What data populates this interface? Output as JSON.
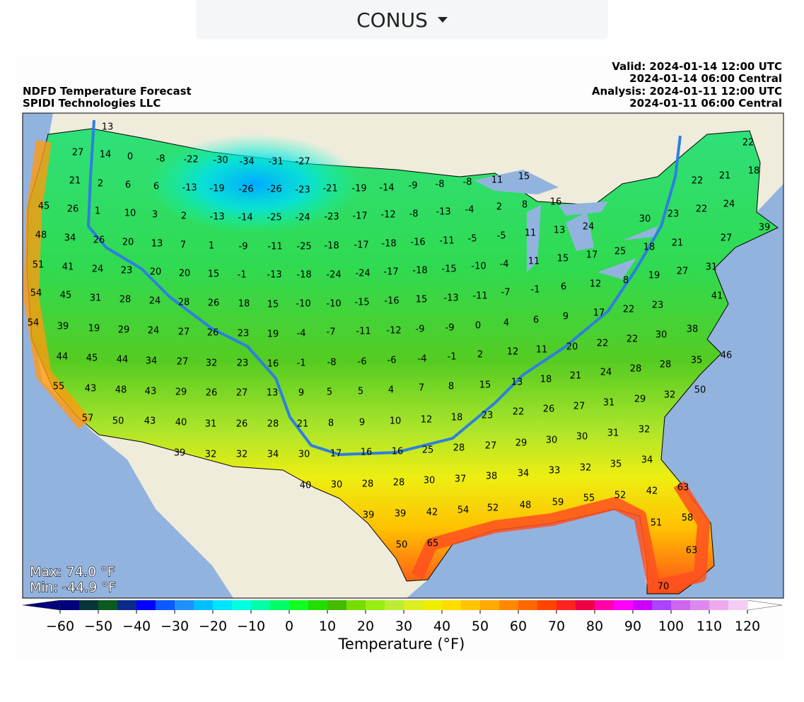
{
  "dropdown": {
    "label": "CONUS"
  },
  "map": {
    "title_lines": [
      "NDFD Temperature Forecast",
      "SPIDI Technologies LLC"
    ],
    "time_lines": [
      "Valid: 2024-01-14 12:00 UTC",
      "2024-01-14 06:00 Central",
      "Analysis: 2024-01-11 12:00 UTC",
      "2024-01-11 06:00 Central"
    ],
    "max_label": "Max: 74.0 °F",
    "min_label": "Min: -44.9 °F",
    "stations": [
      13,
      27,
      14,
      0,
      -8,
      -22,
      -30,
      -34,
      -31,
      -27,
      22,
      21,
      2,
      6,
      6,
      -13,
      -19,
      -26,
      -26,
      -23,
      -21,
      -19,
      -14,
      -9,
      -8,
      -8,
      11,
      15,
      22,
      21,
      18,
      45,
      26,
      1,
      10,
      3,
      2,
      -13,
      -14,
      -25,
      -24,
      -23,
      -17,
      -12,
      -8,
      -13,
      -4,
      2,
      8,
      16,
      30,
      23,
      22,
      24,
      48,
      34,
      26,
      20,
      13,
      7,
      1,
      -9,
      -11,
      -25,
      -18,
      -17,
      -18,
      -16,
      -11,
      -5,
      -5,
      11,
      13,
      24,
      17,
      25,
      18,
      21,
      27,
      39,
      51,
      41,
      24,
      23,
      20,
      20,
      15,
      -1,
      -13,
      -18,
      -24,
      -24,
      -17,
      -18,
      -15,
      -10,
      -4,
      11,
      15,
      12,
      8,
      19,
      27,
      31,
      54,
      45,
      31,
      28,
      24,
      28,
      26,
      18,
      15,
      -10,
      -10,
      -15,
      -16,
      15,
      -13,
      -11,
      -7,
      -1,
      6,
      17,
      22,
      23,
      41,
      54,
      39,
      19,
      29,
      24,
      27,
      26,
      23,
      19,
      -4,
      -7,
      -11,
      -12,
      -9,
      -9,
      0,
      4,
      6,
      9,
      12,
      11,
      20,
      22,
      22,
      30,
      38,
      44,
      45,
      44,
      34,
      27,
      32,
      23,
      16,
      -1,
      -8,
      -6,
      -6,
      -4,
      -1,
      2,
      13,
      18,
      21,
      24,
      28,
      28,
      35,
      46,
      55,
      43,
      48,
      43,
      29,
      26,
      27,
      13,
      9,
      5,
      5,
      4,
      7,
      8,
      15,
      18,
      23,
      22,
      26,
      27,
      31,
      29,
      32,
      50,
      57,
      50,
      43,
      40,
      31,
      26,
      28,
      21,
      8,
      9,
      10,
      12,
      39,
      32,
      32,
      34,
      30,
      17,
      16,
      16,
      25,
      28,
      27,
      29,
      30,
      30,
      31,
      32,
      40,
      30,
      28,
      28,
      30,
      37,
      38,
      34,
      33,
      32,
      35,
      34,
      39,
      39,
      42,
      54,
      52,
      48,
      59,
      55,
      52,
      42,
      63,
      51,
      58,
      50,
      65,
      63,
      70
    ]
  },
  "colorbar": {
    "label": "Temperature (°F)",
    "colors": [
      "#00007a",
      "#06363a",
      "#0b5a1f",
      "#0b2a8c",
      "#0000ff",
      "#0a5aff",
      "#1e90ff",
      "#00bfff",
      "#00e5ff",
      "#00ffe0",
      "#00ffa8",
      "#00ff66",
      "#10ff20",
      "#22dd00",
      "#44bb00",
      "#77dd00",
      "#99ee11",
      "#bbee33",
      "#ddee22",
      "#eeee00",
      "#ffdd00",
      "#ffc400",
      "#ffaa00",
      "#ff8800",
      "#ff6600",
      "#ff4400",
      "#ff2222",
      "#ee0044",
      "#ff00aa",
      "#ff00ff",
      "#cc00ff",
      "#aa44ff",
      "#cc66ee",
      "#dd88ee",
      "#eeaaf0",
      "#f4ccf4"
    ],
    "low_color": "#00007a",
    "high_color": "#ffffff",
    "ticks": [
      {
        "value": -60,
        "label": "−60"
      },
      {
        "value": -50,
        "label": "−50"
      },
      {
        "value": -40,
        "label": "−40"
      },
      {
        "value": -30,
        "label": "−30"
      },
      {
        "value": -20,
        "label": "−20"
      },
      {
        "value": -10,
        "label": "−10"
      },
      0,
      10,
      20,
      30,
      40,
      50,
      60,
      70,
      80,
      90,
      100,
      110,
      120
    ]
  }
}
